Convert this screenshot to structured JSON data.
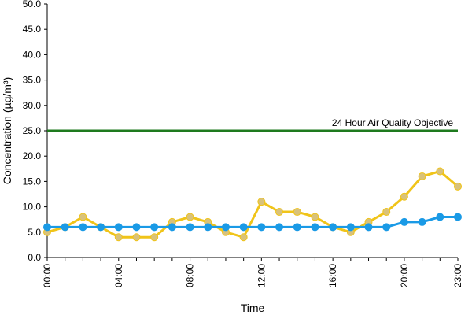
{
  "chart_data": {
    "type": "line",
    "xlabel": "Time",
    "ylabel": "Concentration (µg/m³)",
    "ylim": [
      0,
      50
    ],
    "yticks": [
      "0.0",
      "5.0",
      "10.0",
      "15.0",
      "20.0",
      "25.0",
      "30.0",
      "35.0",
      "40.0",
      "45.0",
      "50.0"
    ],
    "x": [
      "00:00",
      "01:00",
      "02:00",
      "03:00",
      "04:00",
      "05:00",
      "06:00",
      "07:00",
      "08:00",
      "09:00",
      "10:00",
      "11:00",
      "12:00",
      "13:00",
      "14:00",
      "15:00",
      "16:00",
      "17:00",
      "18:00",
      "19:00",
      "20:00",
      "21:00",
      "22:00",
      "23:00"
    ],
    "xticks_shown": [
      "00:00",
      "04:00",
      "08:00",
      "12:00",
      "16:00",
      "20:00",
      "23:00"
    ],
    "grid": false,
    "series": [
      {
        "color": "#f0c419",
        "marker_color": "#d9c27a",
        "values": [
          5,
          6,
          8,
          6,
          4,
          4,
          4,
          7,
          8,
          7,
          5,
          4,
          11,
          9,
          9,
          8,
          6,
          5,
          7,
          9,
          12,
          16,
          17,
          14
        ]
      },
      {
        "color": "#1a9ae6",
        "marker_color": "#1a9ae6",
        "values": [
          6,
          6,
          6,
          6,
          6,
          6,
          6,
          6,
          6,
          6,
          6,
          6,
          6,
          6,
          6,
          6,
          6,
          6,
          6,
          6,
          7,
          7,
          8,
          8
        ]
      }
    ],
    "reference_line": {
      "value": 25,
      "label": "24 Hour Air Quality Objective",
      "color": "#1e7a1e"
    }
  }
}
